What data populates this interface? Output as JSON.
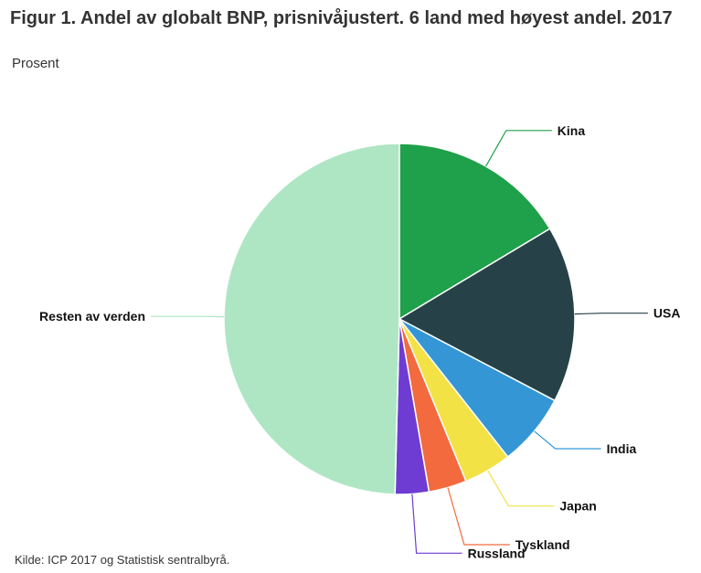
{
  "chart_data": {
    "type": "pie",
    "title": "Figur 1. Andel av globalt BNP, prisnivåjustert. 6 land med høyest andel. 2017",
    "subtitle": "Prosent",
    "unit": "%",
    "slices": [
      {
        "label": "Kina",
        "value": 16.4,
        "color": "#1fa04a"
      },
      {
        "label": "USA",
        "value": 16.3,
        "color": "#264248"
      },
      {
        "label": "India",
        "value": 6.7,
        "color": "#3596d6"
      },
      {
        "label": "Japan",
        "value": 4.4,
        "color": "#f2e246"
      },
      {
        "label": "Tyskland",
        "value": 3.5,
        "color": "#f26a3e"
      },
      {
        "label": "Russland",
        "value": 3.1,
        "color": "#6e3cd3"
      },
      {
        "label": "Resten av verden",
        "value": 49.6,
        "color": "#aee6c4"
      }
    ],
    "source": "Kilde: ICP 2017 og Statistisk sentralbyrå."
  }
}
